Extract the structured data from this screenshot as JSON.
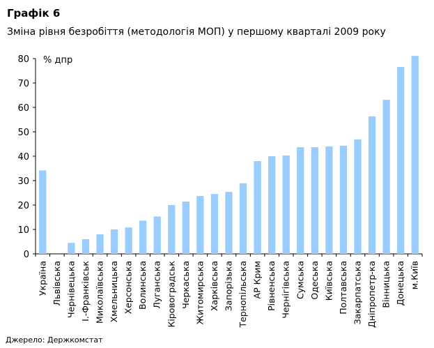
{
  "title": "Графік 6",
  "subtitle": "Зміна рівня безробіття (методологія МОП) у першому кварталі 2009 року",
  "source": "Джерело: Держкомстат",
  "chart_data": {
    "type": "bar",
    "ylabel": "% дпр",
    "ylim": [
      0,
      80
    ],
    "yticks": [
      0,
      10,
      20,
      30,
      40,
      50,
      60,
      70,
      80
    ],
    "grid": false,
    "color": "#99ccff",
    "categories": [
      "Україна",
      "Львівська",
      "Чернівецька",
      "І.-Франківськ",
      "Миколаївська",
      "Хмельницька",
      "Херсонська",
      "Волинська",
      "Луганська",
      "Кіровоградськ",
      "Черкаська",
      "Житомирська",
      "Харківська",
      "Запорізька",
      "Тернопільська",
      "АР Крим",
      "Рівненська",
      "Чернігівська",
      "Сумська",
      "Одеська",
      "Київська",
      "Полтавська",
      "Закарпатська",
      "Дніпропетр-ка",
      "Вінницька",
      "Донецька",
      "м.Київ"
    ],
    "values": [
      34.2,
      0,
      4.5,
      6,
      8,
      10,
      10.8,
      13.6,
      15.3,
      20,
      21.4,
      23.7,
      24.5,
      25.4,
      28.9,
      38,
      40,
      40.3,
      43.7,
      43.7,
      44,
      44.3,
      46.9,
      56.3,
      63.1,
      76.6,
      81.1
    ]
  }
}
